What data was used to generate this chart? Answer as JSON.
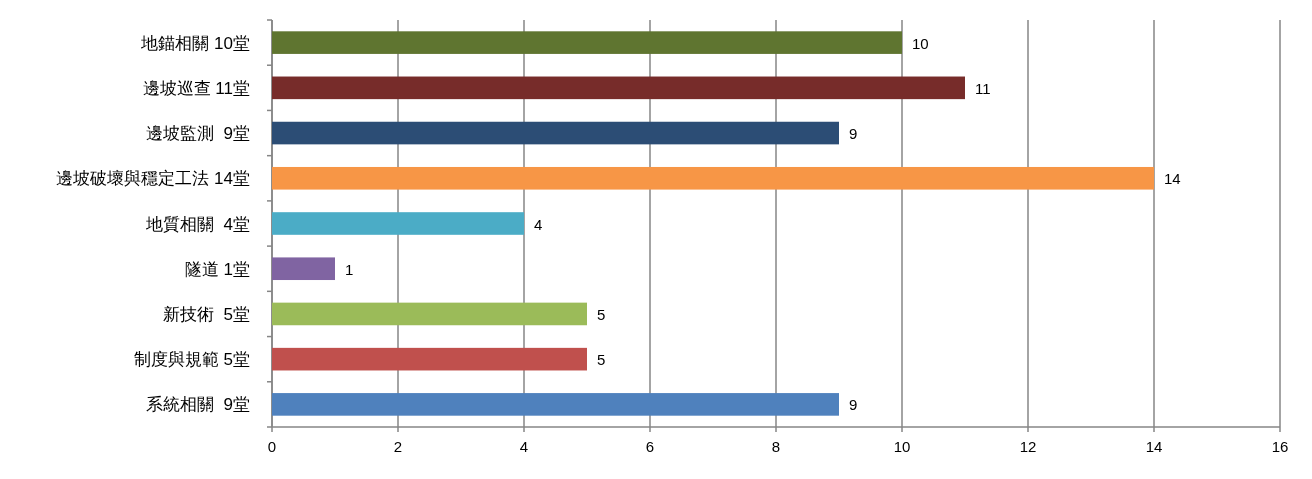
{
  "chart_data": {
    "type": "bar",
    "orientation": "horizontal",
    "categories": [
      "地錨相關 10堂",
      "邊坡巡查 11堂",
      "邊坡監測  9堂",
      "邊坡破壞與穩定工法 14堂",
      "地質相關  4堂",
      "隧道 1堂",
      "新技術  5堂",
      "制度與規範 5堂",
      "系統相關  9堂"
    ],
    "values": [
      10,
      11,
      9,
      14,
      4,
      1,
      5,
      5,
      9
    ],
    "colors": [
      "#5f7530",
      "#772c2a",
      "#2c4d75",
      "#f79646",
      "#4bacc6",
      "#8064a2",
      "#9bbb59",
      "#c0504d",
      "#4f81bd"
    ],
    "xlim": [
      0,
      16
    ],
    "xticks": [
      0,
      2,
      4,
      6,
      8,
      10,
      12,
      14,
      16
    ],
    "grid": "x",
    "data_labels": true
  }
}
